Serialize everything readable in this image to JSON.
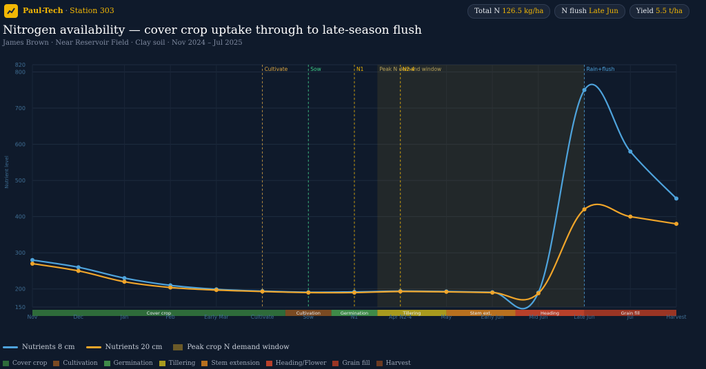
{
  "header": {
    "brand": "Paul-Tech",
    "station": "Station 303",
    "stats": [
      {
        "label": "Total N",
        "value": "126.5 kg/ha"
      },
      {
        "label": "N flush",
        "value": "Late Jun"
      },
      {
        "label": "Yield",
        "value": "5.5 t/ha"
      }
    ],
    "title": "Nitrogen availability — cover crop uptake through to late-season flush",
    "subtitle": "James Brown · Near Reservoir Field · Clay soil · Nov 2024 – Jul 2025"
  },
  "chart_data": {
    "type": "line",
    "title": "Nitrogen availability — cover crop uptake through to late-season flush",
    "ylabel": "Nutrient level",
    "ylim": [
      150,
      820
    ],
    "yticks": [
      150,
      200,
      300,
      400,
      500,
      600,
      700,
      800,
      820
    ],
    "categories": [
      "Nov",
      "Dec",
      "Jan",
      "Feb",
      "Early Mar",
      "Cultivate",
      "Sow",
      "N1",
      "Apr N2-4",
      "May",
      "Early Jun",
      "Mid Jun",
      "Late Jun",
      "Jul",
      "Harvest"
    ],
    "series": [
      {
        "name": "Nutrients 8 cm",
        "color": "#4ea3dc",
        "values": [
          280,
          260,
          230,
          210,
          199,
          194,
          191,
          192,
          194,
          193,
          191,
          190,
          750,
          580,
          450
        ]
      },
      {
        "name": "Nutrients 20 cm",
        "color": "#f0a52a",
        "values": [
          270,
          250,
          220,
          204,
          197,
          193,
          190,
          190,
          193,
          192,
          190,
          188,
          420,
          400,
          380
        ]
      }
    ],
    "shaded_region": {
      "name": "Peak crop N demand window",
      "label": "Peak N demand window",
      "from": 7.5,
      "to": 12,
      "color": "#6b5a28"
    },
    "events": [
      {
        "label": "Cultivate",
        "x": 5,
        "color": "#d9a441"
      },
      {
        "label": "Sow",
        "x": 6,
        "color": "#3fd08a"
      },
      {
        "label": "N1",
        "x": 7,
        "color": "#f2b705"
      },
      {
        "label": "N2-4",
        "x": 8,
        "color": "#f2b705"
      },
      {
        "label": "Rain+flush",
        "x": 12,
        "color": "#4ea3dc"
      }
    ],
    "phases": [
      {
        "label": "Cover crop",
        "from": 0,
        "to": 5.5,
        "color": "#2e6b3a"
      },
      {
        "label": "Cultivation",
        "from": 5.5,
        "to": 6.5,
        "color": "#7a4a22"
      },
      {
        "label": "Germination",
        "from": 6.5,
        "to": 7.5,
        "color": "#3f8a48"
      },
      {
        "label": "Tillering",
        "from": 7.5,
        "to": 9,
        "color": "#a89a1e"
      },
      {
        "label": "Stem ext.",
        "from": 9,
        "to": 10.5,
        "color": "#b8701f"
      },
      {
        "label": "Heading",
        "from": 10.5,
        "to": 12,
        "color": "#b8402a"
      },
      {
        "label": "Grain fill",
        "from": 12,
        "to": 14,
        "color": "#9a3524"
      }
    ],
    "legend": [
      {
        "label": "Nutrients 8 cm",
        "type": "line",
        "color": "#4ea3dc"
      },
      {
        "label": "Nutrients 20 cm",
        "type": "line",
        "color": "#f0a52a"
      },
      {
        "label": "Peak crop N demand window",
        "type": "box",
        "color": "#6b5a28"
      }
    ],
    "phase_legend": [
      {
        "label": "Cover crop",
        "color": "#2e6b3a"
      },
      {
        "label": "Cultivation",
        "color": "#7a4a22"
      },
      {
        "label": "Germination",
        "color": "#3f8a48"
      },
      {
        "label": "Tillering",
        "color": "#a89a1e"
      },
      {
        "label": "Stem extension",
        "color": "#b8701f"
      },
      {
        "label": "Heading/Flower",
        "color": "#b8402a"
      },
      {
        "label": "Grain fill",
        "color": "#9a3524"
      },
      {
        "label": "Harvest",
        "color": "#6b3a22"
      }
    ]
  }
}
